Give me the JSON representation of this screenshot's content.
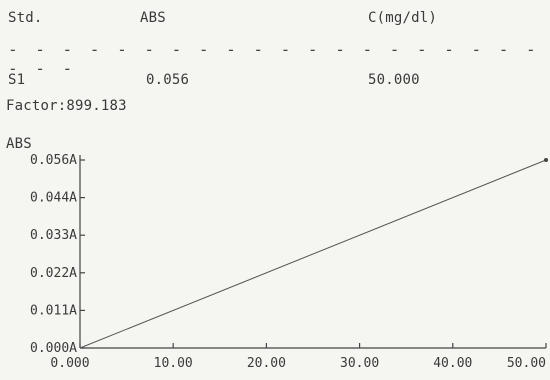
{
  "table": {
    "headers": [
      "Std.",
      "ABS",
      "C(mg/dl)"
    ],
    "divider": "- - - - - - - - - - - - - - - - - - - - - - -",
    "rows": [
      [
        "S1",
        "0.056",
        "50.000"
      ]
    ]
  },
  "factor": "Factor:899.183",
  "chart_data": {
    "type": "line",
    "ylabel": "ABS",
    "xlabel": "",
    "xlim": [
      0,
      50
    ],
    "ylim": [
      0,
      0.056
    ],
    "x_ticks": [
      "0.000",
      "10.00",
      "20.00",
      "30.00",
      "40.00",
      "50.00"
    ],
    "y_ticks": [
      "0.000A",
      "0.011A",
      "0.022A",
      "0.033A",
      "0.044A",
      "0.056A"
    ],
    "grid": false,
    "series": [
      {
        "x": [
          0,
          50
        ],
        "y": [
          0,
          0.056
        ]
      }
    ],
    "markers": [
      {
        "x": 50,
        "y": 0.056
      }
    ]
  }
}
